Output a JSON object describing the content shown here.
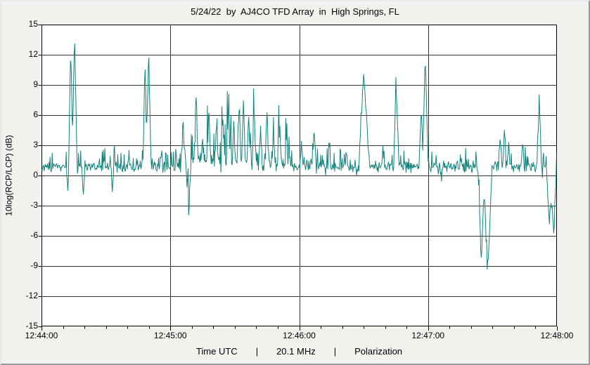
{
  "window": {
    "title": "5/24/22  by  AJ4CO TFD Array  in  High Springs, FL"
  },
  "footer": {
    "time_label": "Time UTC",
    "frequency": "20.1 MHz",
    "mode": "Polarization",
    "separator": "|"
  },
  "chart_data": {
    "type": "line",
    "title": "5/24/22  by  AJ4CO TFD Array  in  High Springs, FL",
    "xlabel": "Time UTC",
    "ylabel": "10log(RCP/LCP) (dB)",
    "grid": true,
    "grid_color": "#333333",
    "plot_background": "#ffffff",
    "x_axis": {
      "start_label": "12:44:00",
      "end_label": "12:48:00",
      "duration_seconds": 240,
      "tick_labels": [
        "12:44:00",
        "12:45:00",
        "12:46:00",
        "12:47:00",
        "12:48:00"
      ],
      "tick_seconds": [
        0,
        60,
        120,
        180,
        240
      ],
      "minor_tick_seconds": 10,
      "gridline_seconds": [
        60,
        120,
        180
      ]
    },
    "y_axis": {
      "label": "10log(RCP/LCP) (dB)",
      "min": -15,
      "max": 15,
      "tick_step": 3,
      "tick_values": [
        15,
        12,
        9,
        6,
        3,
        0,
        -3,
        -6,
        -9,
        -12,
        -15
      ]
    },
    "series": [
      {
        "name": "10log(RCP/LCP)",
        "color": "#12847C",
        "sample_interval_seconds": 0.25,
        "baseline_segments": [
          {
            "t0": 0,
            "t1": 63,
            "mean": 0.85,
            "amp": 0.5,
            "pos": 1.1,
            "neg": 1.0
          },
          {
            "t0": 63,
            "t1": 116,
            "mean": 1.3,
            "amp": 0.9,
            "pos": 3.2,
            "neg": 1.2
          },
          {
            "t0": 116,
            "t1": 146,
            "mean": 0.9,
            "amp": 0.55,
            "pos": 1.2,
            "neg": 1.0
          },
          {
            "t0": 146,
            "t1": 241,
            "mean": 0.85,
            "amp": 0.5,
            "pos": 1.1,
            "neg": 1.0
          }
        ],
        "spikes": [
          {
            "t": 12.2,
            "peak": -1.6,
            "w": 0.7
          },
          {
            "t": 13.6,
            "peak": 12.9,
            "w": 1.0
          },
          {
            "t": 15.4,
            "peak": 13.7,
            "w": 1.2
          },
          {
            "t": 19.5,
            "peak": -2.1,
            "w": 0.8
          },
          {
            "t": 33.0,
            "peak": -1.7,
            "w": 0.7
          },
          {
            "t": 48.2,
            "peak": 10.9,
            "w": 1.0
          },
          {
            "t": 49.9,
            "peak": 11.6,
            "w": 1.2
          },
          {
            "t": 56.0,
            "peak": 2.8,
            "w": 0.6
          },
          {
            "t": 66.0,
            "peak": 4.7,
            "w": 0.9
          },
          {
            "t": 68.5,
            "peak": -4.3,
            "w": 1.2
          },
          {
            "t": 72.0,
            "peak": 7.2,
            "w": 1.0
          },
          {
            "t": 75.0,
            "peak": 3.9,
            "w": 0.8
          },
          {
            "t": 78.0,
            "peak": 5.0,
            "w": 0.9
          },
          {
            "t": 81.5,
            "peak": 4.4,
            "w": 0.8
          },
          {
            "t": 84.5,
            "peak": 5.3,
            "w": 0.9
          },
          {
            "t": 87.0,
            "peak": 6.1,
            "w": 0.8
          },
          {
            "t": 89.5,
            "peak": 4.5,
            "w": 0.7
          },
          {
            "t": 92.0,
            "peak": 7.3,
            "w": 0.9
          },
          {
            "t": 94.0,
            "peak": 6.9,
            "w": 0.8
          },
          {
            "t": 96.5,
            "peak": 5.5,
            "w": 0.8
          },
          {
            "t": 99.0,
            "peak": 6.3,
            "w": 0.9
          },
          {
            "t": 102.0,
            "peak": 4.3,
            "w": 0.8
          },
          {
            "t": 105.0,
            "peak": 6.4,
            "w": 0.9
          },
          {
            "t": 108.0,
            "peak": 3.7,
            "w": 0.8
          },
          {
            "t": 111.0,
            "peak": 4.9,
            "w": 0.9
          },
          {
            "t": 114.0,
            "peak": 3.4,
            "w": 0.8
          },
          {
            "t": 121.0,
            "peak": 3.3,
            "w": 0.7
          },
          {
            "t": 127.0,
            "peak": 4.5,
            "w": 0.9
          },
          {
            "t": 134.0,
            "peak": 3.0,
            "w": 0.7
          },
          {
            "t": 150.0,
            "peak": 10.2,
            "w": 2.2,
            "w2": 2.8
          },
          {
            "t": 159.0,
            "peak": 2.9,
            "w": 0.6
          },
          {
            "t": 165.0,
            "peak": 9.6,
            "w": 1.0,
            "w2": 1.4
          },
          {
            "t": 176.8,
            "peak": 7.0,
            "w": 1.0
          },
          {
            "t": 178.6,
            "peak": 12.1,
            "w": 1.1,
            "w2": 1.5
          },
          {
            "t": 186.0,
            "peak": -0.9,
            "w": 0.6
          },
          {
            "t": 204.8,
            "peak": -8.9,
            "w": 1.6
          },
          {
            "t": 207.6,
            "peak": -10.3,
            "w": 1.8,
            "w2": 2.2
          },
          {
            "t": 213.5,
            "peak": 3.9,
            "w": 0.8
          },
          {
            "t": 215.5,
            "peak": 4.3,
            "w": 0.8
          },
          {
            "t": 217.5,
            "peak": 3.1,
            "w": 0.7
          },
          {
            "t": 224.0,
            "peak": 3.4,
            "w": 0.7
          },
          {
            "t": 231.8,
            "peak": 7.4,
            "w": 1.0
          },
          {
            "t": 236.5,
            "peak": -4.8,
            "w": 1.4
          },
          {
            "t": 238.6,
            "peak": -6.4,
            "w": 1.6,
            "w2": 1.2
          },
          {
            "t": 240.0,
            "peak": 2.4,
            "w": 0.5
          }
        ]
      }
    ]
  }
}
